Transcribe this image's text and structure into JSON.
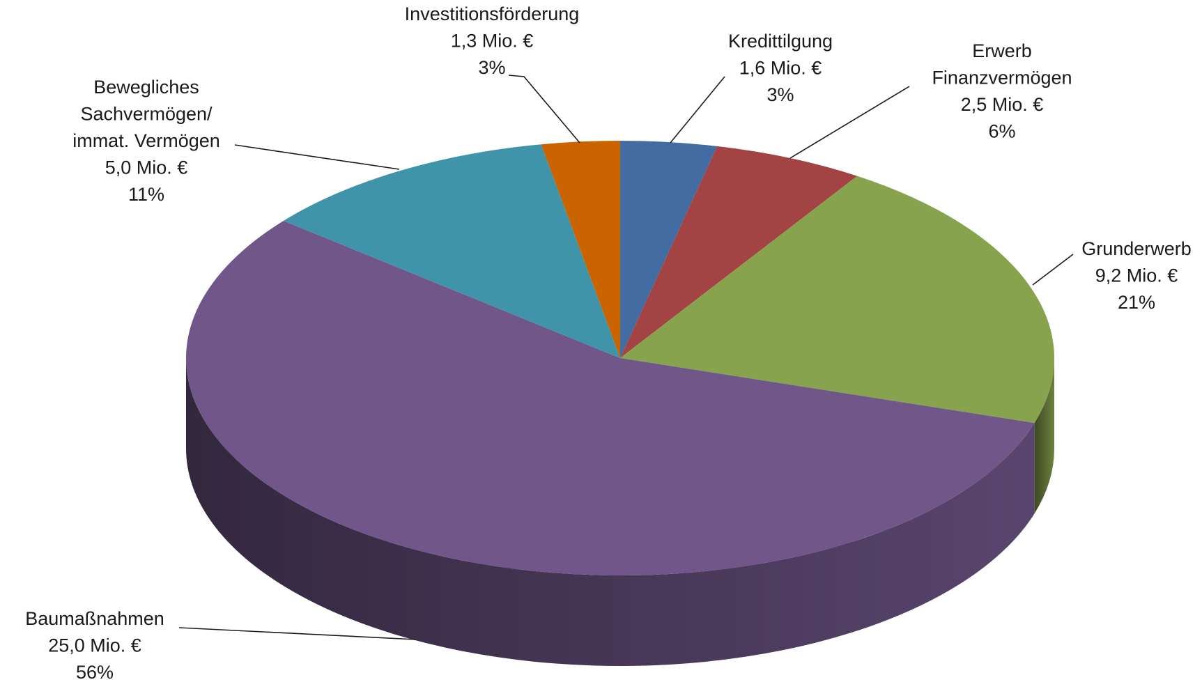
{
  "chart_data": {
    "type": "pie3d",
    "categories": [
      [
        "Kredittilgung"
      ],
      [
        "Erwerb",
        "Finanzvermögen"
      ],
      [
        "Grunderwerb"
      ],
      [
        "Baumaßnahmen"
      ],
      [
        "Bewegliches",
        "Sachvermögen/",
        "immat. Vermögen"
      ],
      [
        "Investitionsförderung"
      ]
    ],
    "values": [
      1.6,
      2.5,
      9.2,
      25.0,
      5.0,
      1.3
    ],
    "value_labels": [
      "1,6 Mio. €",
      "2,5 Mio. €",
      "9,2 Mio. €",
      "25,0 Mio. €",
      "5,0 Mio. €",
      "1,3 Mio. €"
    ],
    "percent_labels": [
      "3%",
      "6%",
      "21%",
      "56%",
      "11%",
      "3%"
    ],
    "colors": [
      "#436ca2",
      "#a34343",
      "#88a34d",
      "#71568a",
      "#4094aa",
      "#c96400"
    ]
  }
}
